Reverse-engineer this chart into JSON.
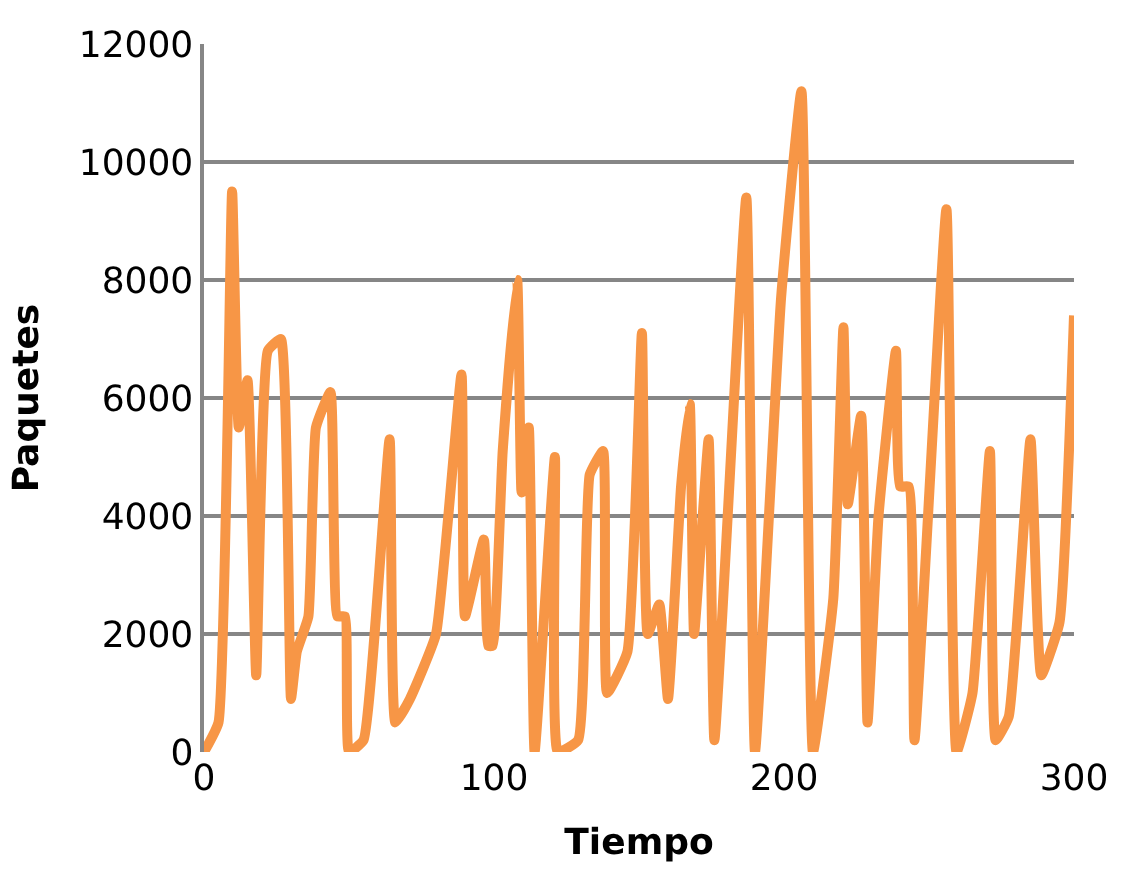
{
  "chart_data": {
    "type": "line",
    "xlabel": "Tiempo",
    "ylabel": "Paquetes",
    "xlim": [
      0,
      300
    ],
    "xticks": [
      0,
      100,
      200,
      300
    ],
    "ylim": [
      0,
      12000
    ],
    "yticks": [
      0,
      2000,
      4000,
      6000,
      8000,
      10000,
      12000
    ],
    "grid": "y",
    "marker": "none",
    "line_style": "solid",
    "series": [
      {
        "color": "#f79646",
        "x": [
          0,
          5,
          9.7,
          12,
          15,
          18,
          22,
          26.5,
          30,
          32,
          36,
          38.6,
          43.6,
          46,
          48.6,
          50,
          55,
          64,
          66,
          71,
          80,
          88.8,
          90,
          96.5,
          98,
          99.5,
          103,
          108,
          109.5,
          112,
          114,
          121,
          122,
          129,
          133,
          137.6,
          139,
          146,
          151,
          153,
          157,
          160,
          164.5,
          167.5,
          169,
          174,
          176,
          187,
          190,
          199,
          206,
          210,
          217,
          220.5,
          222,
          226.6,
          228.8,
          232.6,
          238.6,
          240,
          243,
          245,
          256,
          259.5,
          265,
          271,
          273,
          277.5,
          285,
          288.7,
          295,
          300
        ],
        "values": [
          0,
          500,
          9500,
          5500,
          6300,
          1300,
          6800,
          7000,
          900,
          1700,
          2300,
          5500,
          6100,
          2300,
          2300,
          0,
          200,
          5300,
          500,
          900,
          2000,
          6400,
          2300,
          3600,
          1800,
          1800,
          5100,
          8000,
          4400,
          5500,
          0,
          5000,
          0,
          200,
          4700,
          5100,
          1000,
          1700,
          7100,
          2000,
          2500,
          900,
          4500,
          5900,
          2000,
          5300,
          200,
          9400,
          0,
          7700,
          11200,
          0,
          2600,
          7200,
          4200,
          5700,
          500,
          4000,
          6800,
          4500,
          4500,
          200,
          9200,
          0,
          1000,
          5100,
          200,
          600,
          5300,
          1300,
          2200,
          7400
        ]
      }
    ]
  }
}
